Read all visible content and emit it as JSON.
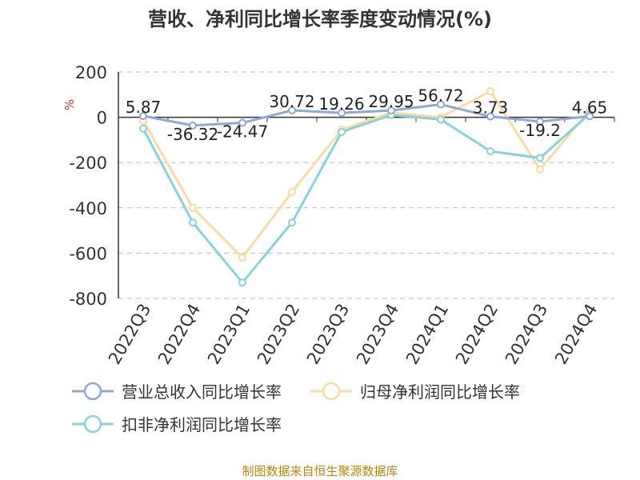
{
  "title": "营收、净利同比增长率季度变动情况(%)",
  "source": "制图数据来自恒生聚源数据库",
  "chart_data": {
    "type": "line",
    "title": "营收、净利同比增长率季度变动情况(%)",
    "ylabel": "%",
    "xlabel": "",
    "ylim": [
      -800,
      200
    ],
    "yticks": [
      200,
      0,
      -200,
      -400,
      -600,
      -800
    ],
    "grid": true,
    "legend_position": "bottom",
    "categories": [
      "2022Q3",
      "2022Q4",
      "2023Q1",
      "2023Q2",
      "2023Q3",
      "2023Q4",
      "2024Q1",
      "2024Q2",
      "2024Q3",
      "2024Q4"
    ],
    "series": [
      {
        "name": "营业总收入同比增长率",
        "color": "#8fa8d8",
        "values": [
          5.87,
          -36.32,
          -24.47,
          30.72,
          19.26,
          29.95,
          56.72,
          3.73,
          -19.2,
          4.65
        ],
        "labels": [
          "5.87",
          "-36.32",
          "-24.47",
          "30.72",
          "19.26",
          "29.95",
          "56.72",
          "3.73",
          "-19.2",
          "4.65"
        ]
      },
      {
        "name": "归母净利润同比增长率",
        "color": "#f8dba0",
        "values": [
          -15,
          -400,
          -620,
          -330,
          -55,
          20,
          0,
          115,
          -230,
          30
        ]
      },
      {
        "name": "扣非净利润同比增长率",
        "color": "#86d3d8",
        "values": [
          -50,
          -465,
          -730,
          -465,
          -65,
          10,
          -10,
          -150,
          -180,
          15
        ]
      }
    ]
  }
}
